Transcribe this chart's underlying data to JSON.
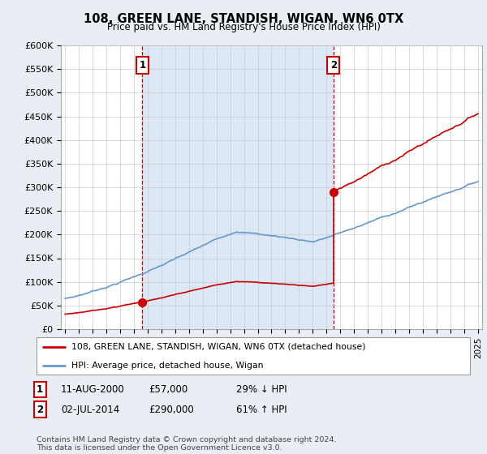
{
  "title": "108, GREEN LANE, STANDISH, WIGAN, WN6 0TX",
  "subtitle": "Price paid vs. HM Land Registry's House Price Index (HPI)",
  "property_label": "108, GREEN LANE, STANDISH, WIGAN, WN6 0TX (detached house)",
  "hpi_label": "HPI: Average price, detached house, Wigan",
  "footer": "Contains HM Land Registry data © Crown copyright and database right 2024.\nThis data is licensed under the Open Government Licence v3.0.",
  "sale1_date": "11-AUG-2000",
  "sale1_price": "£57,000",
  "sale1_hpi": "29% ↓ HPI",
  "sale1_year": 2000.62,
  "sale1_value": 57000,
  "sale2_date": "02-JUL-2014",
  "sale2_price": "£290,000",
  "sale2_hpi": "61% ↑ HPI",
  "sale2_year": 2014.5,
  "sale2_value": 290000,
  "ylim": [
    0,
    600000
  ],
  "yticks": [
    0,
    50000,
    100000,
    150000,
    200000,
    250000,
    300000,
    350000,
    400000,
    450000,
    500000,
    550000,
    600000
  ],
  "ytick_labels": [
    "£0",
    "£50K",
    "£100K",
    "£150K",
    "£200K",
    "£250K",
    "£300K",
    "£350K",
    "£400K",
    "£450K",
    "£500K",
    "£550K",
    "£600K"
  ],
  "property_color": "#cc0000",
  "hpi_color": "#6699cc",
  "vline_color": "#cc0000",
  "shade_color": "#dce8f5",
  "background_color": "#e8eef4",
  "plot_bg_color": "#ffffff",
  "grid_color": "#cccccc",
  "xstart": 1995,
  "xend": 2025
}
